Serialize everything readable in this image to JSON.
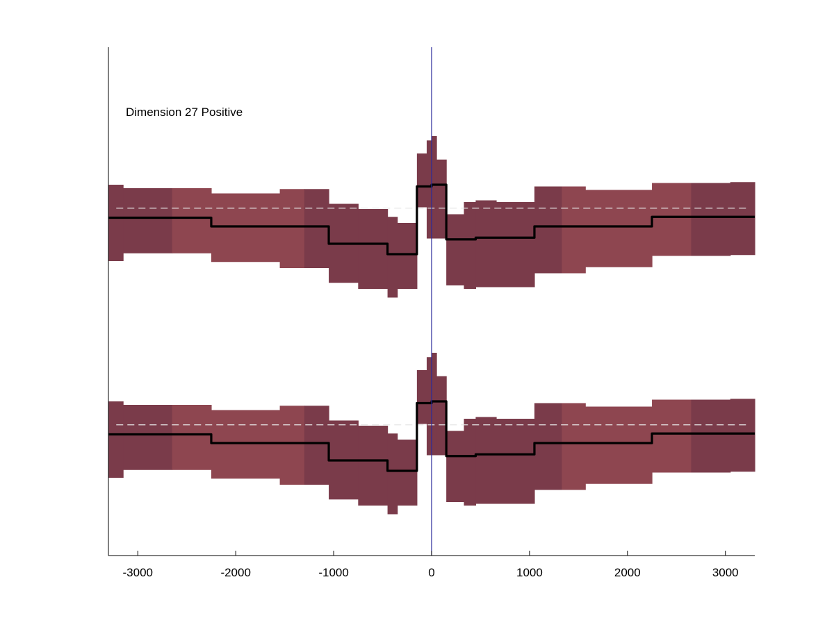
{
  "chart_data": {
    "type": "line",
    "title": "Dimension 27 Positive",
    "xlabel": "",
    "ylabel": "",
    "xlim": [
      -3300,
      3300
    ],
    "xticks": [
      -3000,
      -2000,
      -1000,
      0,
      1000,
      2000,
      3000
    ],
    "xtick_labels": [
      "-3000",
      "-2000",
      "-1000",
      "0",
      "1000",
      "2000",
      "3000"
    ],
    "grid": false,
    "yticks_shown": false,
    "vertical_marker_x": 0,
    "colors": {
      "band_light": "#8e4650",
      "band_dark": "#7a3b4a",
      "line": "#000000",
      "reference_dash": "#e6e6e6",
      "center_line": "#2a2a9a"
    },
    "bins": [
      {
        "x0": -3300,
        "x1": -3150,
        "upper": 0.76,
        "lower": -0.12,
        "shade": "dark"
      },
      {
        "x0": -3150,
        "x1": -2650,
        "upper": 0.72,
        "lower": -0.03,
        "shade": "dark"
      },
      {
        "x0": -2650,
        "x1": -2250,
        "upper": 0.72,
        "lower": -0.03,
        "shade": "light"
      },
      {
        "x0": -2250,
        "x1": -1550,
        "upper": 0.66,
        "lower": -0.13,
        "shade": "light"
      },
      {
        "x0": -1550,
        "x1": -1300,
        "upper": 0.71,
        "lower": -0.2,
        "shade": "light"
      },
      {
        "x0": -1300,
        "x1": -1050,
        "upper": 0.71,
        "lower": -0.2,
        "shade": "dark"
      },
      {
        "x0": -1050,
        "x1": -750,
        "upper": 0.54,
        "lower": -0.37,
        "shade": "dark"
      },
      {
        "x0": -750,
        "x1": -450,
        "upper": 0.48,
        "lower": -0.44,
        "shade": "dark"
      },
      {
        "x0": -450,
        "x1": -350,
        "upper": 0.39,
        "lower": -0.54,
        "shade": "dark"
      },
      {
        "x0": -350,
        "x1": -150,
        "upper": 0.32,
        "lower": -0.44,
        "shade": "dark"
      },
      {
        "x0": -150,
        "x1": -50,
        "upper": 1.12,
        "lower": 0.5,
        "shade": "dark"
      },
      {
        "x0": -50,
        "x1": 0,
        "upper": 1.27,
        "lower": 0.14,
        "shade": "dark"
      },
      {
        "x0": 0,
        "x1": 50,
        "upper": 1.32,
        "lower": 0.14,
        "shade": "dark"
      },
      {
        "x0": 50,
        "x1": 150,
        "upper": 1.05,
        "lower": 0.14,
        "shade": "dark"
      },
      {
        "x0": 150,
        "x1": 330,
        "upper": 0.42,
        "lower": -0.4,
        "shade": "dark"
      },
      {
        "x0": 330,
        "x1": 450,
        "upper": 0.56,
        "lower": -0.44,
        "shade": "dark"
      },
      {
        "x0": 450,
        "x1": 660,
        "upper": 0.58,
        "lower": -0.42,
        "shade": "dark"
      },
      {
        "x0": 660,
        "x1": 1050,
        "upper": 0.56,
        "lower": -0.42,
        "shade": "dark"
      },
      {
        "x0": 1050,
        "x1": 1330,
        "upper": 0.74,
        "lower": -0.26,
        "shade": "dark"
      },
      {
        "x0": 1330,
        "x1": 1570,
        "upper": 0.74,
        "lower": -0.26,
        "shade": "light"
      },
      {
        "x0": 1570,
        "x1": 2250,
        "upper": 0.7,
        "lower": -0.19,
        "shade": "light"
      },
      {
        "x0": 2250,
        "x1": 2650,
        "upper": 0.78,
        "lower": -0.06,
        "shade": "light"
      },
      {
        "x0": 2650,
        "x1": 3050,
        "upper": 0.78,
        "lower": -0.06,
        "shade": "dark"
      },
      {
        "x0": 3050,
        "x1": 3300,
        "upper": 0.79,
        "lower": -0.05,
        "shade": "dark"
      }
    ],
    "series": [
      {
        "x": [
          -3300,
          -2250,
          -2250,
          -1050,
          -1050,
          -450,
          -450,
          -150,
          -150,
          0,
          0,
          150,
          150,
          450,
          450,
          1050,
          1050,
          2250,
          2250,
          3300
        ],
        "y": [
          0.38,
          0.38,
          0.28,
          0.28,
          0.08,
          0.08,
          -0.04,
          -0.04,
          0.74,
          0.74,
          0.76,
          0.76,
          0.13,
          0.13,
          0.15,
          0.15,
          0.28,
          0.28,
          0.39,
          0.39
        ]
      }
    ],
    "reference_level": 0.49,
    "panels": 2
  }
}
